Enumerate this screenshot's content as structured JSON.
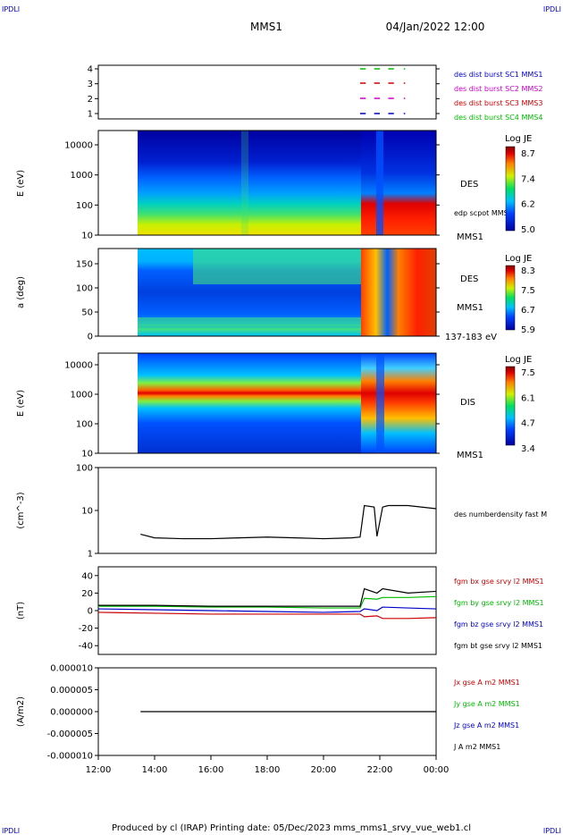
{
  "corners": {
    "tl": "IPDLI",
    "tr": "IPDLI",
    "bl": "IPDLI",
    "br": "IPDLI"
  },
  "header": {
    "spacecraft": "MMS1",
    "datetime": "04/Jan/2022 12:00"
  },
  "footer": "Produced by cl (IRAP)   Printing date: 05/Dec/2023   mms_mms1_srvy_vue_web1.cl",
  "time_axis": {
    "labels": [
      "12:00",
      "14:00",
      "16:00",
      "18:00",
      "20:00",
      "22:00",
      "00:00"
    ],
    "hours": [
      12,
      14,
      16,
      18,
      20,
      22,
      24
    ]
  },
  "colors": {
    "blue": "#0000cc",
    "magenta": "#cc00cc",
    "red": "#cc0000",
    "green": "#00bb00",
    "black": "#000000"
  },
  "chart_data": [
    {
      "id": "burst",
      "type": "scatter",
      "yticks": [
        "1",
        "2",
        "3",
        "4"
      ],
      "legend": [
        {
          "name": "des dist burst SC1 MMS1",
          "color": "#0000cc"
        },
        {
          "name": "des dist burst SC2 MMS2",
          "color": "#cc00cc"
        },
        {
          "name": "des dist burst SC3 MMS3",
          "color": "#cc0000"
        },
        {
          "name": "des dist burst SC4 MMS4",
          "color": "#00bb00"
        }
      ],
      "segments_hours": [
        [
          21.3,
          21.5
        ],
        [
          21.8,
          22.0
        ],
        [
          22.3,
          22.5
        ],
        [
          22.85,
          22.9
        ]
      ]
    },
    {
      "id": "des_energy",
      "type": "heatmap",
      "ylabel": "E (eV)",
      "yticks": [
        "10",
        "100",
        "1000",
        "10000"
      ],
      "instrument": "DES",
      "unit_label": "edp scpot MMS1",
      "spacecraft": "MMS1",
      "colorbar": {
        "title": "Log JE",
        "ticks": [
          "8.7",
          "7.4",
          "6.2",
          "5.0"
        ]
      },
      "data_start_hour": 13.4
    },
    {
      "id": "des_pitch",
      "type": "heatmap",
      "ylabel": "a (deg)",
      "yticks": [
        "0",
        "50",
        "100",
        "150"
      ],
      "instrument": "DES",
      "spacecraft": "MMS1",
      "energy_range": "137-183 eV",
      "colorbar": {
        "title": "Log JE",
        "ticks": [
          "8.3",
          "7.5",
          "6.7",
          "5.9"
        ]
      },
      "data_start_hour": 13.4
    },
    {
      "id": "dis_energy",
      "type": "heatmap",
      "ylabel": "E (eV)",
      "yticks": [
        "10",
        "100",
        "1000",
        "10000"
      ],
      "instrument": "DIS",
      "spacecraft": "MMS1",
      "colorbar": {
        "title": "Log JE",
        "ticks": [
          "7.5",
          "6.1",
          "4.7",
          "3.4"
        ]
      },
      "data_start_hour": 13.4
    },
    {
      "id": "density",
      "type": "line",
      "ylabel": "(cm^-3)",
      "yticks": [
        "1",
        "10",
        "100"
      ],
      "ylim": [
        1,
        100
      ],
      "log": true,
      "legend": [
        {
          "name": "des numberdensity fast M",
          "color": "#000000"
        }
      ],
      "series": [
        {
          "x": [
            13.5,
            14,
            15,
            16,
            17,
            18,
            19,
            20,
            21,
            21.3,
            21.45,
            21.8,
            21.9,
            22.1,
            22.3,
            23,
            24
          ],
          "y": [
            2.8,
            2.3,
            2.2,
            2.2,
            2.3,
            2.4,
            2.3,
            2.2,
            2.3,
            2.4,
            13,
            12,
            2.5,
            12,
            13,
            13,
            11
          ]
        }
      ]
    },
    {
      "id": "fgm",
      "type": "line",
      "ylabel": "(nT)",
      "yticks": [
        "-40",
        "-20",
        "0",
        "20",
        "40"
      ],
      "ylim": [
        -50,
        50
      ],
      "legend": [
        {
          "name": "fgm bx gse srvy l2 MMS1",
          "color": "#cc0000"
        },
        {
          "name": "fgm by gse srvy l2 MMS1",
          "color": "#00bb00"
        },
        {
          "name": "fgm bz gse srvy l2 MMS1",
          "color": "#0000cc"
        },
        {
          "name": "fgm bt gse srvy l2 MMS1",
          "color": "#000000"
        }
      ],
      "x": [
        12,
        14,
        16,
        18,
        20,
        21.3,
        21.45,
        21.9,
        22.1,
        23,
        24
      ],
      "series": [
        {
          "name": "fgm bx gse srvy l2 MMS1",
          "color": "#cc0000",
          "y": [
            -2,
            -3,
            -4,
            -4,
            -4,
            -4,
            -7,
            -6,
            -9,
            -9,
            -8
          ]
        },
        {
          "name": "fgm by gse srvy l2 MMS1",
          "color": "#00bb00",
          "y": [
            5,
            5,
            4,
            4,
            3,
            3,
            14,
            13,
            15,
            15,
            16
          ]
        },
        {
          "name": "fgm bz gse srvy l2 MMS1",
          "color": "#0000cc",
          "y": [
            2,
            1,
            0,
            -1,
            -2,
            -1,
            2,
            0,
            4,
            3,
            2
          ]
        },
        {
          "name": "fgm bt gse srvy l2 MMS1",
          "color": "#000000",
          "y": [
            6,
            6,
            5,
            5,
            5,
            5,
            25,
            20,
            25,
            20,
            22
          ]
        }
      ]
    },
    {
      "id": "current",
      "type": "line",
      "ylabel": "(A/m2)",
      "yticks": [
        "-0.000010",
        "-0.000005",
        "0.000000",
        "0.000005",
        "0.000010"
      ],
      "ylim": [
        -1e-05,
        1e-05
      ],
      "legend": [
        {
          "name": "Jx gse A m2 MMS1",
          "color": "#cc0000"
        },
        {
          "name": "Jy gse A m2 MMS1",
          "color": "#00bb00"
        },
        {
          "name": "Jz gse A m2 MMS1",
          "color": "#0000cc"
        },
        {
          "name": "J A m2 MMS1",
          "color": "#000000"
        }
      ],
      "series": [
        {
          "x": [
            13.5,
            24
          ],
          "y": [
            0,
            0
          ]
        }
      ]
    }
  ]
}
